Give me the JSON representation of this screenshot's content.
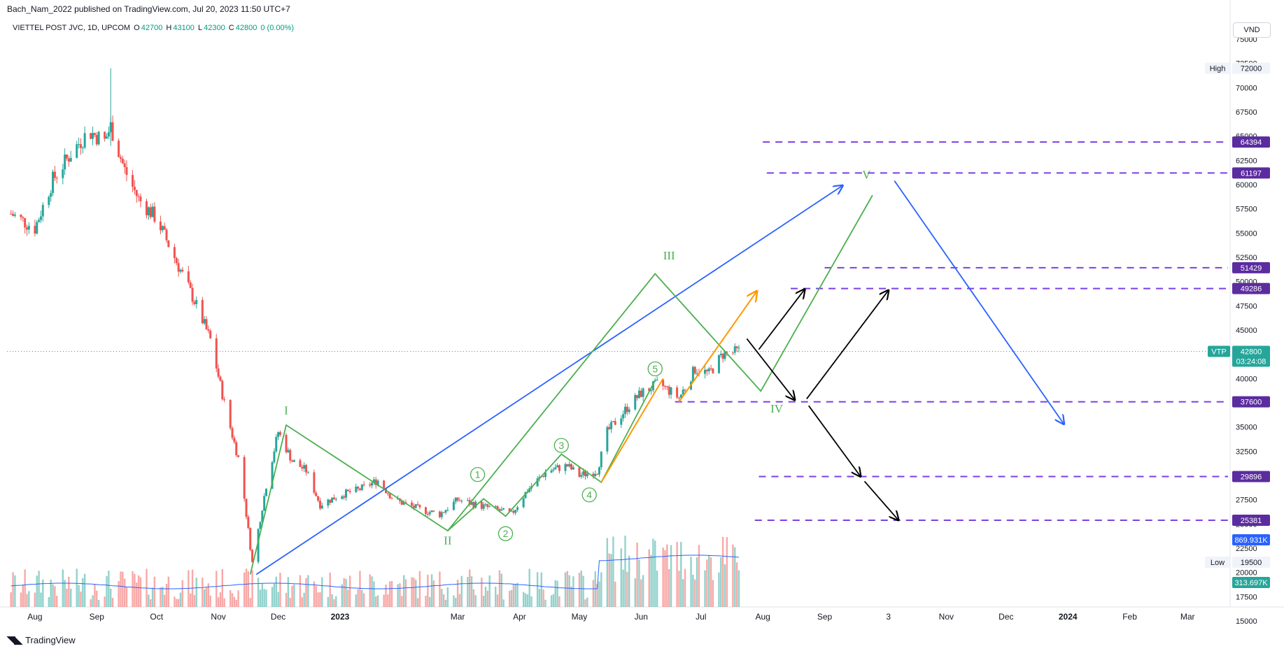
{
  "header": {
    "published_line": "Bach_Nam_2022 published on TradingView.com, Jul 20, 2023 11:50 UTC+7",
    "symbol_line": "VIETTEL POST JVC, 1D, UPCOM",
    "open_label": "O",
    "open": "42700",
    "high_label": "H",
    "high": "43100",
    "low_label": "L",
    "low": "42300",
    "close_label": "C",
    "close": "42800",
    "change": "0 (0.00%)",
    "currency": "VND"
  },
  "footer": {
    "brand": "TradingView",
    "logo": "tradingview-logo-icon"
  },
  "colors": {
    "up": "#26a69a",
    "down": "#ef5350",
    "wave": "#4caf50",
    "trend": "#2962ff",
    "orange": "#ff9800",
    "level": "#7b3fe4",
    "arrow": "#000000"
  },
  "chart_data": {
    "type": "candlestick",
    "ylim": [
      15000,
      75000
    ],
    "y_ticks": [
      "75000",
      "72500",
      "70000",
      "67500",
      "65000",
      "62500",
      "60000",
      "57500",
      "55000",
      "52500",
      "50000",
      "47500",
      "45000",
      "42500",
      "40000",
      "37500",
      "35000",
      "32500",
      "30000",
      "27500",
      "25000",
      "22500",
      "20000",
      "17500",
      "15000"
    ],
    "x_ticks": [
      "Aug",
      "Sep",
      "Oct",
      "Nov",
      "Dec",
      "2023",
      "Mar",
      "Apr",
      "May",
      "Jun",
      "Jul",
      "Aug",
      "Sep",
      "3",
      "Nov",
      "Dec",
      "2024",
      "Feb",
      "Mar"
    ],
    "range_high": {
      "label": "High",
      "value": "72000"
    },
    "range_low": {
      "label": "Low",
      "value": "19500"
    },
    "last_price": {
      "symbol": "VTP",
      "value": "42800",
      "countdown": "03:24:08"
    },
    "volume_labels": [
      "869.931K",
      "313.697K"
    ],
    "levels": [
      {
        "value": 64394,
        "label": "64394"
      },
      {
        "value": 61197,
        "label": "61197"
      },
      {
        "value": 51429,
        "label": "51429"
      },
      {
        "value": 49286,
        "label": "49286"
      },
      {
        "value": 37600,
        "label": "37600"
      },
      {
        "value": 29896,
        "label": "29896"
      },
      {
        "value": 25381,
        "label": "25381"
      }
    ],
    "price_path": [
      [
        "2022-07-20",
        57000
      ],
      [
        "2022-08-01",
        55500
      ],
      [
        "2022-08-10",
        60500
      ],
      [
        "2022-08-20",
        63500
      ],
      [
        "2022-08-28",
        65500
      ],
      [
        "2022-09-05",
        64500
      ],
      [
        "2022-09-08",
        66000
      ],
      [
        "2022-09-15",
        61500
      ],
      [
        "2022-09-22",
        58500
      ],
      [
        "2022-10-01",
        56500
      ],
      [
        "2022-10-10",
        52500
      ],
      [
        "2022-10-20",
        48000
      ],
      [
        "2022-10-28",
        44000
      ],
      [
        "2022-11-05",
        36500
      ],
      [
        "2022-11-12",
        31000
      ],
      [
        "2022-11-18",
        21000
      ],
      [
        "2022-11-25",
        29000
      ],
      [
        "2022-12-01",
        34500
      ],
      [
        "2022-12-08",
        31500
      ],
      [
        "2022-12-15",
        30500
      ],
      [
        "2022-12-22",
        27000
      ],
      [
        "2023-01-01",
        28000
      ],
      [
        "2023-01-10",
        28500
      ],
      [
        "2023-01-20",
        29500
      ],
      [
        "2023-01-28",
        27500
      ],
      [
        "2023-02-10",
        26500
      ],
      [
        "2023-02-20",
        26000
      ],
      [
        "2023-03-01",
        27500
      ],
      [
        "2023-03-10",
        27000
      ],
      [
        "2023-03-20",
        26500
      ],
      [
        "2023-03-28",
        26000
      ],
      [
        "2023-04-05",
        28500
      ],
      [
        "2023-04-15",
        30500
      ],
      [
        "2023-04-25",
        31000
      ],
      [
        "2023-05-01",
        30000
      ],
      [
        "2023-05-10",
        30500
      ],
      [
        "2023-05-15",
        34500
      ],
      [
        "2023-05-25",
        37000
      ],
      [
        "2023-06-01",
        38500
      ],
      [
        "2023-06-10",
        39500
      ],
      [
        "2023-06-20",
        38000
      ],
      [
        "2023-06-28",
        41000
      ],
      [
        "2023-07-05",
        40500
      ],
      [
        "2023-07-12",
        42500
      ],
      [
        "2023-07-20",
        42800
      ]
    ],
    "wave_labels": [
      {
        "text": "I",
        "date": "2022-12-05",
        "price": 36300
      },
      {
        "text": "II",
        "date": "2023-02-24",
        "price": 22900
      },
      {
        "text": "III",
        "date": "2023-06-15",
        "price": 52300
      },
      {
        "text": "IV",
        "date": "2023-08-08",
        "price": 36500
      },
      {
        "text": "V",
        "date": "2023-09-22",
        "price": 60600
      }
    ],
    "sub_wave_labels": [
      {
        "text": "1",
        "date": "2023-03-11",
        "price": 30100
      },
      {
        "text": "2",
        "date": "2023-03-25",
        "price": 24000
      },
      {
        "text": "3",
        "date": "2023-04-22",
        "price": 33100
      },
      {
        "text": "4",
        "date": "2023-05-06",
        "price": 28000
      },
      {
        "text": "5",
        "date": "2023-06-08",
        "price": 41000
      }
    ],
    "wave_path": [
      [
        "2022-11-17",
        19800
      ],
      [
        "2022-12-05",
        35200
      ],
      [
        "2023-02-24",
        24300
      ],
      [
        "2023-06-08",
        50800
      ],
      [
        "2023-07-31",
        38700
      ],
      [
        "2023-09-25",
        58900
      ]
    ],
    "sub_wave_path": [
      [
        "2023-02-24",
        24300
      ],
      [
        "2023-03-14",
        27600
      ],
      [
        "2023-03-25",
        25800
      ],
      [
        "2023-04-22",
        32200
      ],
      [
        "2023-05-12",
        29300
      ],
      [
        "2023-06-08",
        39800
      ]
    ],
    "trend_line": [
      [
        "2022-11-20",
        19800
      ],
      [
        "2023-09-10",
        59900
      ]
    ],
    "trend_arrow": [
      [
        "2023-10-06",
        60400
      ],
      [
        "2023-12-30",
        35300
      ]
    ],
    "orange_path": [
      [
        "2023-05-12",
        29300
      ],
      [
        "2023-06-12",
        40000
      ]
    ],
    "orange_arrow": [
      [
        "2023-06-20",
        37600
      ],
      [
        "2023-07-29",
        49000
      ]
    ],
    "black_arrows": [
      [
        [
          "2023-07-30",
          43000
        ],
        [
          "2023-08-22",
          49200
        ]
      ],
      [
        [
          "2023-07-24",
          44100
        ],
        [
          "2023-08-17",
          37800
        ]
      ],
      [
        [
          "2023-08-23",
          37900
        ],
        [
          "2023-10-03",
          49100
        ]
      ],
      [
        [
          "2023-08-24",
          37200
        ],
        [
          "2023-09-19",
          29900
        ]
      ],
      [
        [
          "2023-09-21",
          29400
        ],
        [
          "2023-10-08",
          25400
        ]
      ]
    ]
  }
}
